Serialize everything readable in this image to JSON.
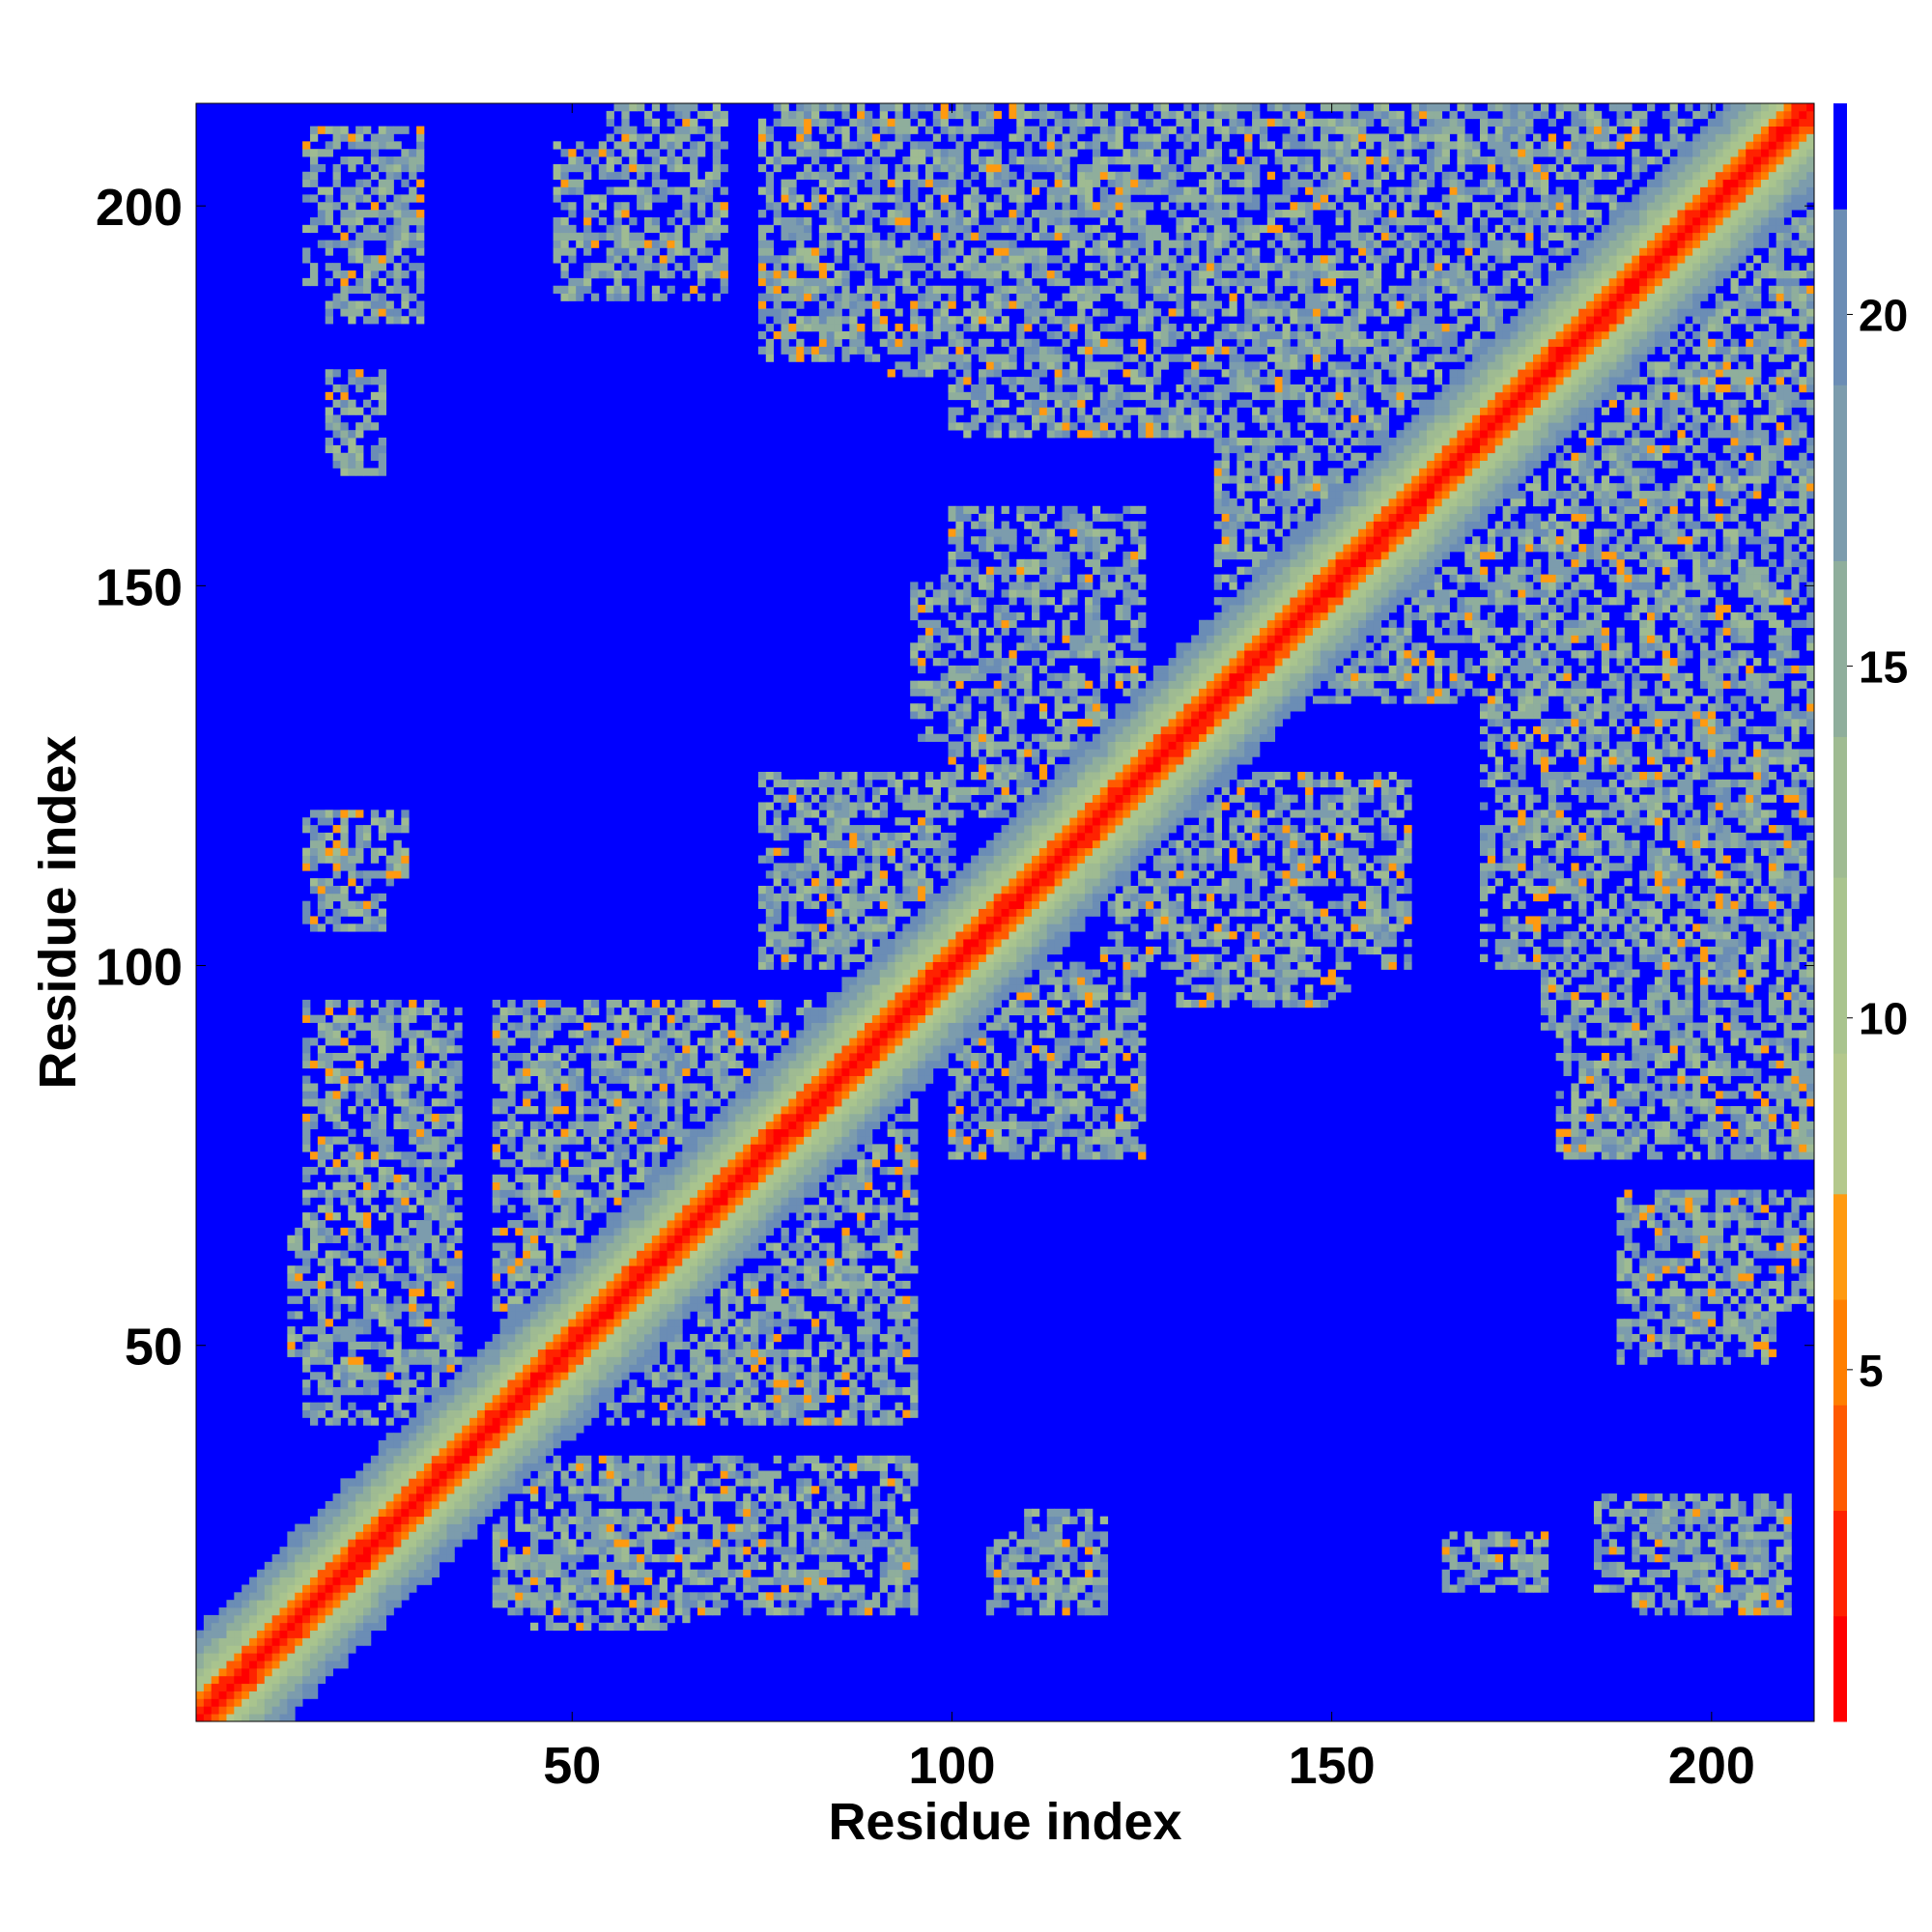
{
  "chart_data": {
    "type": "heatmap",
    "title": "",
    "xlabel": "Residue index",
    "ylabel": "Residue index",
    "n_residues": 213,
    "xlim": [
      1,
      213
    ],
    "ylim": [
      1,
      213
    ],
    "xticks": [
      50,
      100,
      150,
      200
    ],
    "yticks": [
      50,
      100,
      150,
      200
    ],
    "colorbar": {
      "ticks": [
        5,
        10,
        15,
        20
      ],
      "range": [
        0,
        23
      ],
      "levels": [
        {
          "max": 1.5,
          "color": "#ff0000"
        },
        {
          "max": 3,
          "color": "#ff2200"
        },
        {
          "max": 4.5,
          "color": "#ff5a00"
        },
        {
          "max": 6,
          "color": "#ff7f00"
        },
        {
          "max": 7.5,
          "color": "#ff9a10"
        },
        {
          "max": 9.5,
          "color": "#b4c88c"
        },
        {
          "max": 12,
          "color": "#a9c48e"
        },
        {
          "max": 14,
          "color": "#9fbb92"
        },
        {
          "max": 16.5,
          "color": "#8fae9c"
        },
        {
          "max": 19,
          "color": "#7c9cad"
        },
        {
          "max": 21.5,
          "color": "#6b8db5"
        },
        {
          "max": 23,
          "color": "#0000ff"
        }
      ]
    },
    "background_color": "#0000ff",
    "diagonal_band": {
      "core_max_offset": 3,
      "band_max_offset": 12
    },
    "contact_regions": [
      {
        "x": [
          170,
          213
        ],
        "y": [
          183,
          213
        ],
        "note": "band parallel-top right"
      },
      {
        "x": [
          75,
          92
        ],
        "y": [
          180,
          213
        ]
      },
      {
        "x": [
          92,
          125
        ],
        "y": [
          178,
          213
        ]
      },
      {
        "x": [
          125,
          170
        ],
        "y": [
          170,
          213
        ]
      },
      {
        "x": [
          180,
          213
        ],
        "y": [
          145,
          180
        ]
      },
      {
        "x": [
          135,
          175
        ],
        "y": [
          140,
          175
        ]
      },
      {
        "x": [
          95,
          125
        ],
        "y": [
          130,
          152
        ]
      },
      {
        "x": [
          75,
          100
        ],
        "y": [
          100,
          125
        ]
      },
      {
        "x": [
          120,
          160
        ],
        "y": [
          100,
          125
        ]
      },
      {
        "x": [
          170,
          213
        ],
        "y": [
          100,
          140
        ]
      },
      {
        "x": [
          100,
          125
        ],
        "y": [
          75,
          100
        ]
      },
      {
        "x": [
          195,
          213
        ],
        "y": [
          75,
          100
        ]
      },
      {
        "x": [
          18,
          30
        ],
        "y": [
          185,
          210
        ]
      },
      {
        "x": [
          48,
          70
        ],
        "y": [
          188,
          208
        ]
      },
      {
        "x": [
          18,
          32
        ],
        "y": [
          60,
          95
        ]
      },
      {
        "x": [
          13,
          30
        ],
        "y": [
          45,
          65
        ]
      },
      {
        "x": [
          40,
          95
        ],
        "y": [
          15,
          35
        ]
      },
      {
        "x": [
          55,
          95
        ],
        "y": [
          40,
          95
        ]
      },
      {
        "x": [
          105,
          120
        ],
        "y": [
          15,
          25
        ]
      },
      {
        "x": [
          190,
          210
        ],
        "y": [
          15,
          28
        ]
      },
      {
        "x": [
          190,
          213
        ],
        "y": [
          55,
          70
        ]
      },
      {
        "x": [
          18,
          28
        ],
        "y": [
          110,
          120
        ]
      },
      {
        "x": [
          18,
          25
        ],
        "y": [
          165,
          178
        ]
      }
    ]
  }
}
